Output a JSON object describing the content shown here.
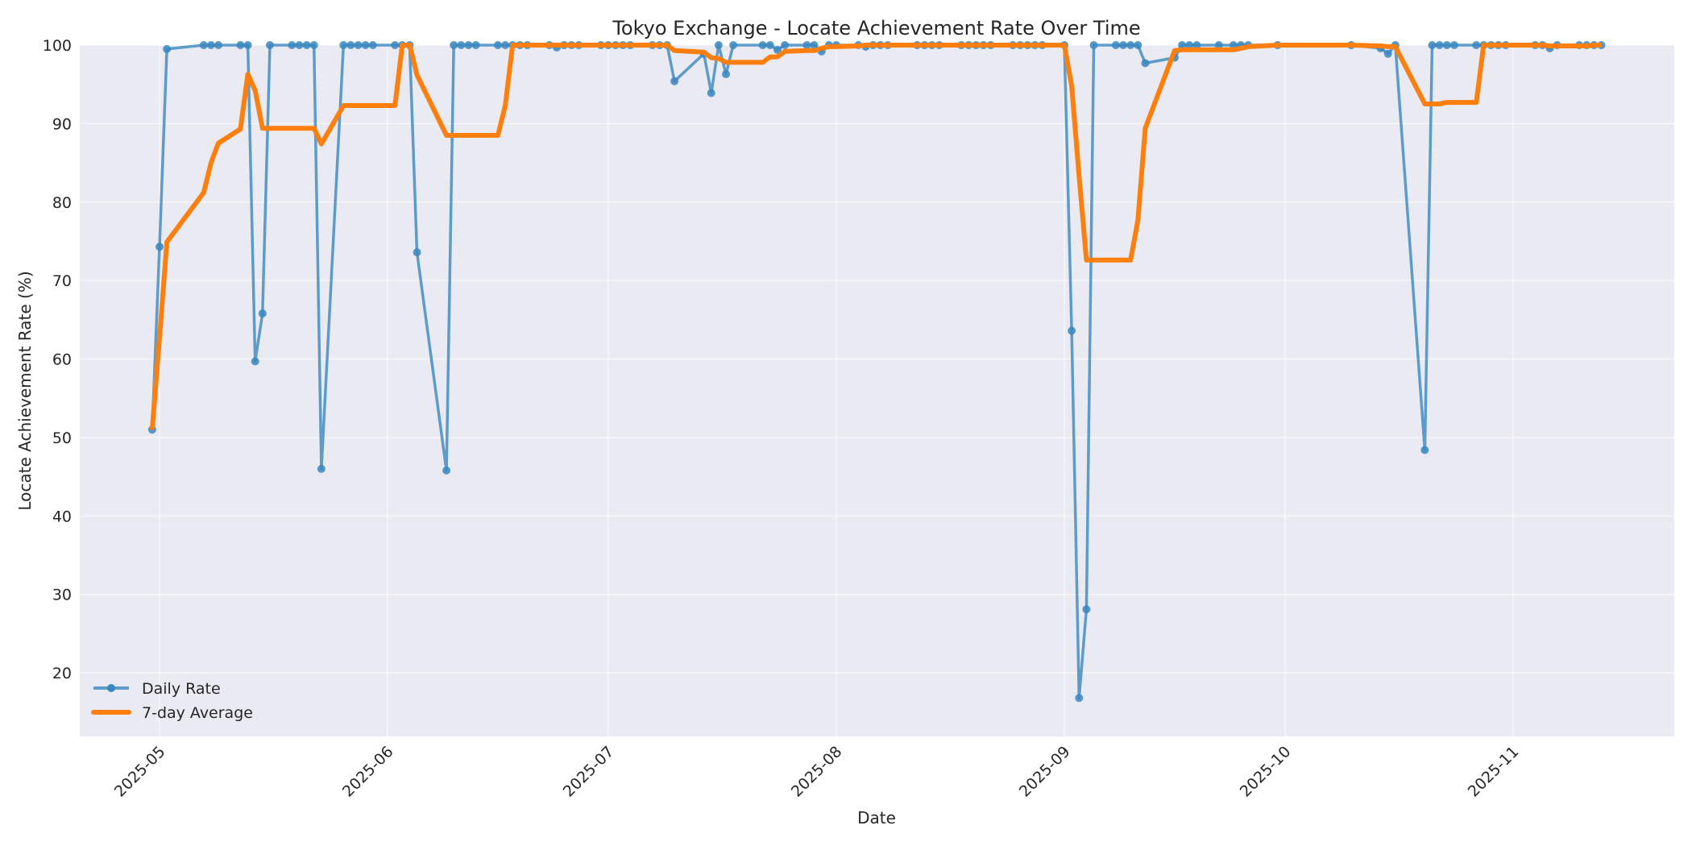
{
  "chart_data": {
    "type": "line",
    "title": "Tokyo Exchange - Locate Achievement Rate Over Time",
    "xlabel": "Date",
    "ylabel": "Locate Achievement Rate (%)",
    "ylim": [
      11.9,
      100
    ],
    "yticks": [
      20,
      30,
      40,
      50,
      60,
      70,
      80,
      90,
      100
    ],
    "xticks": [
      "2025-05",
      "2025-06",
      "2025-07",
      "2025-08",
      "2025-09",
      "2025-10",
      "2025-11"
    ],
    "xlim": [
      "2025-04-20",
      "2025-11-21"
    ],
    "grid": true,
    "legend_position": "lower left",
    "background": "#eaeaf2",
    "series": [
      {
        "name": "Daily Rate",
        "color": "#3a87c0",
        "marker": "circle",
        "points": [
          [
            "2025-04-30",
            51.0
          ],
          [
            "2025-05-01",
            74.3
          ],
          [
            "2025-05-02",
            99.5
          ],
          [
            "2025-05-07",
            100
          ],
          [
            "2025-05-08",
            100
          ],
          [
            "2025-05-09",
            100
          ],
          [
            "2025-05-12",
            100
          ],
          [
            "2025-05-13",
            100
          ],
          [
            "2025-05-14",
            59.7
          ],
          [
            "2025-05-15",
            65.8
          ],
          [
            "2025-05-16",
            100
          ],
          [
            "2025-05-19",
            100
          ],
          [
            "2025-05-20",
            100
          ],
          [
            "2025-05-21",
            100
          ],
          [
            "2025-05-22",
            100
          ],
          [
            "2025-05-23",
            46.0
          ],
          [
            "2025-05-26",
            100
          ],
          [
            "2025-05-27",
            100
          ],
          [
            "2025-05-28",
            100
          ],
          [
            "2025-05-29",
            100
          ],
          [
            "2025-05-30",
            100
          ],
          [
            "2025-06-02",
            100
          ],
          [
            "2025-06-03",
            100
          ],
          [
            "2025-06-04",
            100
          ],
          [
            "2025-06-05",
            73.6
          ],
          [
            "2025-06-09",
            45.8
          ],
          [
            "2025-06-10",
            100
          ],
          [
            "2025-06-11",
            100
          ],
          [
            "2025-06-12",
            100
          ],
          [
            "2025-06-13",
            100
          ],
          [
            "2025-06-16",
            100
          ],
          [
            "2025-06-17",
            100
          ],
          [
            "2025-06-18",
            100
          ],
          [
            "2025-06-19",
            100
          ],
          [
            "2025-06-20",
            100
          ],
          [
            "2025-06-23",
            100
          ],
          [
            "2025-06-24",
            99.7
          ],
          [
            "2025-06-25",
            100
          ],
          [
            "2025-06-26",
            100
          ],
          [
            "2025-06-27",
            100
          ],
          [
            "2025-06-30",
            100
          ],
          [
            "2025-07-01",
            100
          ],
          [
            "2025-07-02",
            100
          ],
          [
            "2025-07-03",
            100
          ],
          [
            "2025-07-04",
            100
          ],
          [
            "2025-07-07",
            100
          ],
          [
            "2025-07-08",
            100
          ],
          [
            "2025-07-09",
            100
          ],
          [
            "2025-07-10",
            95.4
          ],
          [
            "2025-07-14",
            98.9
          ],
          [
            "2025-07-15",
            93.9
          ],
          [
            "2025-07-16",
            100
          ],
          [
            "2025-07-17",
            96.3
          ],
          [
            "2025-07-18",
            100
          ],
          [
            "2025-07-22",
            100
          ],
          [
            "2025-07-23",
            100
          ],
          [
            "2025-07-24",
            99.4
          ],
          [
            "2025-07-25",
            100
          ],
          [
            "2025-07-28",
            100
          ],
          [
            "2025-07-29",
            100
          ],
          [
            "2025-07-30",
            99.2
          ],
          [
            "2025-07-31",
            100
          ],
          [
            "2025-08-01",
            100
          ],
          [
            "2025-08-04",
            100
          ],
          [
            "2025-08-05",
            99.8
          ],
          [
            "2025-08-06",
            100
          ],
          [
            "2025-08-07",
            100
          ],
          [
            "2025-08-08",
            100
          ],
          [
            "2025-08-12",
            100
          ],
          [
            "2025-08-13",
            100
          ],
          [
            "2025-08-14",
            100
          ],
          [
            "2025-08-15",
            100
          ],
          [
            "2025-08-18",
            100
          ],
          [
            "2025-08-19",
            100
          ],
          [
            "2025-08-20",
            100
          ],
          [
            "2025-08-21",
            100
          ],
          [
            "2025-08-22",
            100
          ],
          [
            "2025-08-25",
            100
          ],
          [
            "2025-08-26",
            100
          ],
          [
            "2025-08-27",
            100
          ],
          [
            "2025-08-28",
            100
          ],
          [
            "2025-08-29",
            100
          ],
          [
            "2025-09-01",
            100
          ],
          [
            "2025-09-02",
            63.6
          ],
          [
            "2025-09-03",
            16.8
          ],
          [
            "2025-09-04",
            28.1
          ],
          [
            "2025-09-05",
            100
          ],
          [
            "2025-09-08",
            100
          ],
          [
            "2025-09-09",
            100
          ],
          [
            "2025-09-10",
            100
          ],
          [
            "2025-09-11",
            100
          ],
          [
            "2025-09-12",
            97.7
          ],
          [
            "2025-09-16",
            98.4
          ],
          [
            "2025-09-17",
            100
          ],
          [
            "2025-09-18",
            100
          ],
          [
            "2025-09-19",
            100
          ],
          [
            "2025-09-22",
            100
          ],
          [
            "2025-09-24",
            100
          ],
          [
            "2025-09-25",
            100
          ],
          [
            "2025-09-26",
            100
          ],
          [
            "2025-09-30",
            100
          ],
          [
            "2025-10-10",
            100
          ],
          [
            "2025-10-14",
            99.6
          ],
          [
            "2025-10-15",
            98.9
          ],
          [
            "2025-10-16",
            100
          ],
          [
            "2025-10-20",
            48.4
          ],
          [
            "2025-10-21",
            100
          ],
          [
            "2025-10-22",
            100
          ],
          [
            "2025-10-23",
            100
          ],
          [
            "2025-10-24",
            100
          ],
          [
            "2025-10-27",
            100
          ],
          [
            "2025-10-28",
            100
          ],
          [
            "2025-10-29",
            100
          ],
          [
            "2025-10-30",
            100
          ],
          [
            "2025-10-31",
            100
          ],
          [
            "2025-11-04",
            100
          ],
          [
            "2025-11-05",
            100
          ],
          [
            "2025-11-06",
            99.6
          ],
          [
            "2025-11-07",
            100
          ],
          [
            "2025-11-10",
            100
          ],
          [
            "2025-11-11",
            100
          ],
          [
            "2025-11-12",
            100
          ],
          [
            "2025-11-13",
            100
          ]
        ]
      },
      {
        "name": "7-day Average",
        "color": "#ff7f0e",
        "marker": "none",
        "points": [
          [
            "2025-04-30",
            51.0
          ],
          [
            "2025-05-01",
            62.7
          ],
          [
            "2025-05-02",
            74.9
          ],
          [
            "2025-05-07",
            81.2
          ],
          [
            "2025-05-08",
            85.0
          ],
          [
            "2025-05-09",
            87.5
          ],
          [
            "2025-05-12",
            89.3
          ],
          [
            "2025-05-13",
            96.3
          ],
          [
            "2025-05-14",
            94.2
          ],
          [
            "2025-05-15",
            89.4
          ],
          [
            "2025-05-16",
            89.4
          ],
          [
            "2025-05-19",
            89.4
          ],
          [
            "2025-05-20",
            89.4
          ],
          [
            "2025-05-21",
            89.4
          ],
          [
            "2025-05-22",
            89.4
          ],
          [
            "2025-05-23",
            87.4
          ],
          [
            "2025-05-26",
            92.3
          ],
          [
            "2025-05-27",
            92.3
          ],
          [
            "2025-05-28",
            92.3
          ],
          [
            "2025-05-29",
            92.3
          ],
          [
            "2025-05-30",
            92.3
          ],
          [
            "2025-06-02",
            92.3
          ],
          [
            "2025-06-03",
            100
          ],
          [
            "2025-06-04",
            100
          ],
          [
            "2025-06-05",
            96.2
          ],
          [
            "2025-06-09",
            88.5
          ],
          [
            "2025-06-10",
            88.5
          ],
          [
            "2025-06-11",
            88.5
          ],
          [
            "2025-06-12",
            88.5
          ],
          [
            "2025-06-13",
            88.5
          ],
          [
            "2025-06-16",
            88.5
          ],
          [
            "2025-06-17",
            92.3
          ],
          [
            "2025-06-18",
            100
          ],
          [
            "2025-06-19",
            100
          ],
          [
            "2025-06-20",
            100
          ],
          [
            "2025-06-23",
            100
          ],
          [
            "2025-06-24",
            100
          ],
          [
            "2025-06-25",
            100
          ],
          [
            "2025-06-26",
            100
          ],
          [
            "2025-06-27",
            100
          ],
          [
            "2025-06-30",
            100
          ],
          [
            "2025-07-01",
            100
          ],
          [
            "2025-07-02",
            100
          ],
          [
            "2025-07-03",
            100
          ],
          [
            "2025-07-04",
            100
          ],
          [
            "2025-07-07",
            100
          ],
          [
            "2025-07-08",
            100
          ],
          [
            "2025-07-09",
            100
          ],
          [
            "2025-07-10",
            99.3
          ],
          [
            "2025-07-14",
            99.1
          ],
          [
            "2025-07-15",
            98.4
          ],
          [
            "2025-07-16",
            98.3
          ],
          [
            "2025-07-17",
            97.8
          ],
          [
            "2025-07-18",
            97.8
          ],
          [
            "2025-07-22",
            97.8
          ],
          [
            "2025-07-23",
            98.5
          ],
          [
            "2025-07-24",
            98.5
          ],
          [
            "2025-07-25",
            99.2
          ],
          [
            "2025-07-28",
            99.3
          ],
          [
            "2025-07-29",
            99.3
          ],
          [
            "2025-07-30",
            99.6
          ],
          [
            "2025-07-31",
            99.8
          ],
          [
            "2025-08-01",
            99.8
          ],
          [
            "2025-08-04",
            99.9
          ],
          [
            "2025-08-05",
            100
          ],
          [
            "2025-08-06",
            100
          ],
          [
            "2025-08-07",
            100
          ],
          [
            "2025-08-08",
            100
          ],
          [
            "2025-08-12",
            100
          ],
          [
            "2025-08-13",
            100
          ],
          [
            "2025-08-14",
            100
          ],
          [
            "2025-08-15",
            100
          ],
          [
            "2025-08-18",
            100
          ],
          [
            "2025-08-19",
            100
          ],
          [
            "2025-08-20",
            100
          ],
          [
            "2025-08-21",
            100
          ],
          [
            "2025-08-22",
            100
          ],
          [
            "2025-08-25",
            100
          ],
          [
            "2025-08-26",
            100
          ],
          [
            "2025-08-27",
            100
          ],
          [
            "2025-08-28",
            100
          ],
          [
            "2025-08-29",
            100
          ],
          [
            "2025-09-01",
            100
          ],
          [
            "2025-09-02",
            94.8
          ],
          [
            "2025-09-03",
            83.3
          ],
          [
            "2025-09-04",
            72.6
          ],
          [
            "2025-09-05",
            72.6
          ],
          [
            "2025-09-08",
            72.6
          ],
          [
            "2025-09-09",
            72.6
          ],
          [
            "2025-09-10",
            72.6
          ],
          [
            "2025-09-11",
            77.7
          ],
          [
            "2025-09-12",
            89.4
          ],
          [
            "2025-09-16",
            99.3
          ],
          [
            "2025-09-17",
            99.4
          ],
          [
            "2025-09-18",
            99.4
          ],
          [
            "2025-09-19",
            99.4
          ],
          [
            "2025-09-22",
            99.4
          ],
          [
            "2025-09-24",
            99.4
          ],
          [
            "2025-09-25",
            99.6
          ],
          [
            "2025-09-26",
            99.8
          ],
          [
            "2025-09-30",
            100
          ],
          [
            "2025-10-10",
            100
          ],
          [
            "2025-10-14",
            99.9
          ],
          [
            "2025-10-15",
            99.8
          ],
          [
            "2025-10-16",
            99.8
          ],
          [
            "2025-10-20",
            92.5
          ],
          [
            "2025-10-21",
            92.5
          ],
          [
            "2025-10-22",
            92.5
          ],
          [
            "2025-10-23",
            92.7
          ],
          [
            "2025-10-24",
            92.7
          ],
          [
            "2025-10-27",
            92.7
          ],
          [
            "2025-10-28",
            100
          ],
          [
            "2025-10-29",
            100
          ],
          [
            "2025-10-30",
            100
          ],
          [
            "2025-10-31",
            100
          ],
          [
            "2025-11-04",
            100
          ],
          [
            "2025-11-05",
            100
          ],
          [
            "2025-11-06",
            99.9
          ],
          [
            "2025-11-07",
            99.9
          ],
          [
            "2025-11-10",
            99.9
          ],
          [
            "2025-11-11",
            99.9
          ],
          [
            "2025-11-12",
            100
          ],
          [
            "2025-11-13",
            100
          ]
        ]
      }
    ]
  },
  "legend": {
    "items": [
      {
        "label": "Daily Rate"
      },
      {
        "label": "7-day Average"
      }
    ]
  }
}
